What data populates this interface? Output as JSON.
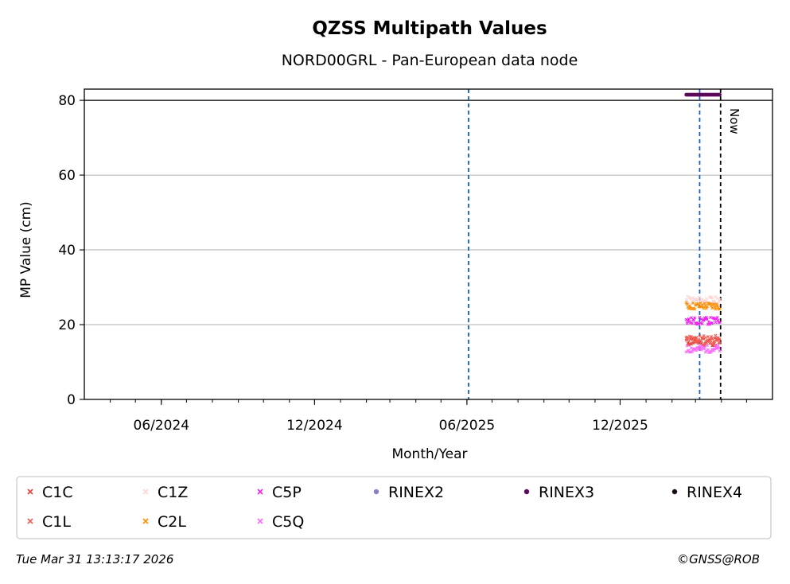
{
  "chart_data": {
    "type": "scatter",
    "title": "QZSS Multipath Values",
    "subtitle": "NORD00GRL - Pan-European data node",
    "xlabel": "Month/Year",
    "ylabel": "MP Value (cm)",
    "xlim": [
      "2024-03-01",
      "2026-06-01"
    ],
    "ylim": [
      0,
      83
    ],
    "yticks": [
      0,
      20,
      40,
      60,
      80
    ],
    "xticks": [
      {
        "date": "2024-06-01",
        "label": "06/2024"
      },
      {
        "date": "2024-12-01",
        "label": "12/2024"
      },
      {
        "date": "2025-06-01",
        "label": "06/2025"
      },
      {
        "date": "2025-12-01",
        "label": "12/2025"
      }
    ],
    "grid": "horizontal",
    "reference_line_y": 80,
    "event_lines": [
      {
        "date": "2025-06-03",
        "style": "dashed",
        "color": "#1f5fa8"
      },
      {
        "date": "2026-03-06",
        "style": "dashed",
        "color": "#1f5fa8"
      },
      {
        "date": "2026-03-31",
        "style": "dashed",
        "color": "#000000",
        "label": "Now"
      }
    ],
    "date_range": [
      "2026-02-18",
      "2026-03-30"
    ],
    "series": [
      {
        "name": "C1C",
        "marker": "x",
        "color": "#e8413c",
        "mean": 15.5,
        "spread": 1.2
      },
      {
        "name": "C1L",
        "marker": "x",
        "color": "#f25c54",
        "mean": 16.0,
        "spread": 1.2
      },
      {
        "name": "C1Z",
        "marker": "x",
        "color": "#ffd6d6",
        "mean": 26.5,
        "spread": 1.0
      },
      {
        "name": "C2L",
        "marker": "x",
        "color": "#ff8c00",
        "mean": 25.0,
        "spread": 1.0
      },
      {
        "name": "C5P",
        "marker": "x",
        "color": "#ee22ee",
        "mean": 21.0,
        "spread": 1.0
      },
      {
        "name": "C5Q",
        "marker": "x",
        "color": "#ff66ff",
        "mean": 13.5,
        "spread": 1.0
      },
      {
        "name": "RINEX2",
        "marker": "dot",
        "color": "#8a7fc4",
        "mean": null
      },
      {
        "name": "RINEX3",
        "marker": "dot",
        "color": "#5c0a5c",
        "mean": 81.5,
        "spread": 0
      },
      {
        "name": "RINEX4",
        "marker": "dot",
        "color": "#1a0a1a",
        "mean": null
      }
    ]
  },
  "footer": {
    "timestamp": "Tue Mar 31 13:13:17 2026",
    "credit": "©GNSS@ROB"
  }
}
